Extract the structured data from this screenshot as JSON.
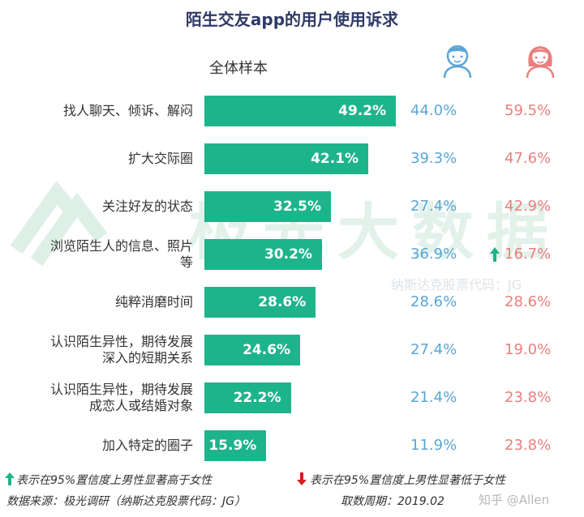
{
  "title": "陌生交友app的用户使用诉求",
  "sample_label": "全体样本",
  "watermark": {
    "main": "极光大数据",
    "sub": "纳斯达克股票代码：JG"
  },
  "colors": {
    "bar": "#1db48c",
    "male": "#5aa6d6",
    "female": "#e8807d",
    "arrow_up": "#1db48c",
    "arrow_down": "#d22020",
    "title": "#2f3a66"
  },
  "icons": {
    "male": "boy-avatar-icon",
    "female": "girl-avatar-icon"
  },
  "chart_data": {
    "type": "bar",
    "orientation": "horizontal",
    "title": "陌生交友app的用户使用诉求",
    "categories": [
      [
        "找人聊天、倾诉、解闷"
      ],
      [
        "扩大交际圈"
      ],
      [
        "关注好友的状态"
      ],
      [
        "浏览陌生人的信息、照片",
        "等"
      ],
      [
        "纯粹消磨时间"
      ],
      [
        "认识陌生异性，期待发展",
        "深入的短期关系"
      ],
      [
        "认识陌生异性，期待发展",
        "成恋人或结婚对象"
      ],
      [
        "加入特定的圈子"
      ]
    ],
    "series": [
      {
        "name": "全体样本",
        "values": [
          49.2,
          42.1,
          32.5,
          30.2,
          28.6,
          24.6,
          22.2,
          15.9
        ],
        "labels": [
          "49.2%",
          "42.1%",
          "32.5%",
          "30.2%",
          "28.6%",
          "24.6%",
          "22.2%",
          "15.9%"
        ]
      },
      {
        "values": [
          44.0,
          39.3,
          27.4,
          36.9,
          28.6,
          27.4,
          21.4,
          11.9
        ],
        "labels": [
          "44.0%",
          "39.3%",
          "27.4%",
          "36.9%",
          "28.6%",
          "27.4%",
          "21.4%",
          "11.9%"
        ]
      },
      {
        "values": [
          59.5,
          47.6,
          42.9,
          16.7,
          28.6,
          19.0,
          23.8,
          23.8
        ],
        "labels": [
          "59.5%",
          "47.6%",
          "42.9%",
          "16.7%",
          "28.6%",
          "19.0%",
          "23.8%",
          "23.8%"
        ]
      }
    ],
    "significance": [
      null,
      null,
      null,
      "up",
      null,
      null,
      null,
      null
    ],
    "xlim": [
      0,
      60
    ]
  },
  "legend": {
    "up": "表示在95%置信度上男性显著高于女性",
    "down": "表示在95%置信度上男性显著低于女性"
  },
  "footer": {
    "source": "数据来源：极光调研（纳斯达克股票代码：JG）",
    "period": "取数周期：2019.02",
    "credit": "知乎 @Allen"
  }
}
